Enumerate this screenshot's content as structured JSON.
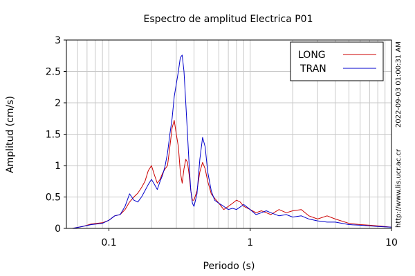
{
  "chart_data": {
    "type": "line",
    "title": "Espectro de amplitud Electrica P01",
    "xlabel": "Periodo (s)",
    "ylabel": "Amplitud (cm/s)",
    "xscale": "log",
    "xlim": [
      0.05,
      10
    ],
    "ylim": [
      0,
      3
    ],
    "x_tick_labels": [
      "0.1",
      "1",
      "10"
    ],
    "x_tick_values": [
      0.1,
      1,
      10
    ],
    "y_tick_labels": [
      "0",
      "0.5",
      "1",
      "1.5",
      "2",
      "2.5",
      "3"
    ],
    "y_tick_values": [
      0,
      0.5,
      1,
      1.5,
      2,
      2.5,
      3
    ],
    "grid": true,
    "legend_position": "top-right",
    "series": [
      {
        "name": "LONG",
        "color": "#cc0000",
        "points": [
          [
            0.055,
            0.0
          ],
          [
            0.065,
            0.03
          ],
          [
            0.075,
            0.07
          ],
          [
            0.09,
            0.09
          ],
          [
            0.1,
            0.13
          ],
          [
            0.11,
            0.2
          ],
          [
            0.12,
            0.22
          ],
          [
            0.13,
            0.3
          ],
          [
            0.14,
            0.42
          ],
          [
            0.15,
            0.5
          ],
          [
            0.16,
            0.56
          ],
          [
            0.17,
            0.65
          ],
          [
            0.18,
            0.75
          ],
          [
            0.19,
            0.92
          ],
          [
            0.2,
            1.0
          ],
          [
            0.21,
            0.85
          ],
          [
            0.22,
            0.72
          ],
          [
            0.23,
            0.78
          ],
          [
            0.24,
            0.88
          ],
          [
            0.25,
            0.95
          ],
          [
            0.26,
            1.0
          ],
          [
            0.27,
            1.3
          ],
          [
            0.28,
            1.6
          ],
          [
            0.29,
            1.72
          ],
          [
            0.3,
            1.5
          ],
          [
            0.31,
            1.3
          ],
          [
            0.32,
            0.9
          ],
          [
            0.33,
            0.72
          ],
          [
            0.34,
            0.95
          ],
          [
            0.35,
            1.1
          ],
          [
            0.36,
            1.05
          ],
          [
            0.37,
            0.85
          ],
          [
            0.38,
            0.6
          ],
          [
            0.39,
            0.45
          ],
          [
            0.4,
            0.45
          ],
          [
            0.42,
            0.6
          ],
          [
            0.44,
            0.9
          ],
          [
            0.46,
            1.05
          ],
          [
            0.48,
            0.95
          ],
          [
            0.5,
            0.75
          ],
          [
            0.53,
            0.55
          ],
          [
            0.56,
            0.48
          ],
          [
            0.6,
            0.4
          ],
          [
            0.65,
            0.3
          ],
          [
            0.7,
            0.35
          ],
          [
            0.75,
            0.4
          ],
          [
            0.8,
            0.45
          ],
          [
            0.85,
            0.42
          ],
          [
            0.9,
            0.35
          ],
          [
            1.0,
            0.3
          ],
          [
            1.1,
            0.25
          ],
          [
            1.2,
            0.28
          ],
          [
            1.3,
            0.25
          ],
          [
            1.4,
            0.22
          ],
          [
            1.6,
            0.3
          ],
          [
            1.8,
            0.25
          ],
          [
            2.0,
            0.28
          ],
          [
            2.3,
            0.3
          ],
          [
            2.6,
            0.2
          ],
          [
            3.0,
            0.15
          ],
          [
            3.5,
            0.2
          ],
          [
            4.0,
            0.15
          ],
          [
            5.0,
            0.08
          ],
          [
            6.0,
            0.06
          ],
          [
            7.0,
            0.05
          ],
          [
            8.0,
            0.04
          ],
          [
            10.0,
            0.02
          ]
        ]
      },
      {
        "name": "TRAN",
        "color": "#0000cc",
        "points": [
          [
            0.055,
            0.0
          ],
          [
            0.065,
            0.03
          ],
          [
            0.075,
            0.06
          ],
          [
            0.09,
            0.08
          ],
          [
            0.1,
            0.13
          ],
          [
            0.11,
            0.2
          ],
          [
            0.12,
            0.22
          ],
          [
            0.13,
            0.35
          ],
          [
            0.14,
            0.55
          ],
          [
            0.15,
            0.45
          ],
          [
            0.16,
            0.42
          ],
          [
            0.17,
            0.5
          ],
          [
            0.18,
            0.6
          ],
          [
            0.19,
            0.7
          ],
          [
            0.2,
            0.78
          ],
          [
            0.21,
            0.7
          ],
          [
            0.22,
            0.62
          ],
          [
            0.23,
            0.75
          ],
          [
            0.24,
            0.85
          ],
          [
            0.25,
            1.0
          ],
          [
            0.26,
            1.2
          ],
          [
            0.27,
            1.5
          ],
          [
            0.28,
            1.75
          ],
          [
            0.29,
            2.1
          ],
          [
            0.3,
            2.3
          ],
          [
            0.31,
            2.5
          ],
          [
            0.32,
            2.72
          ],
          [
            0.33,
            2.76
          ],
          [
            0.34,
            2.5
          ],
          [
            0.35,
            2.0
          ],
          [
            0.36,
            1.5
          ],
          [
            0.37,
            1.0
          ],
          [
            0.38,
            0.6
          ],
          [
            0.39,
            0.4
          ],
          [
            0.4,
            0.35
          ],
          [
            0.42,
            0.55
          ],
          [
            0.44,
            1.1
          ],
          [
            0.46,
            1.45
          ],
          [
            0.48,
            1.3
          ],
          [
            0.5,
            0.9
          ],
          [
            0.53,
            0.6
          ],
          [
            0.56,
            0.45
          ],
          [
            0.6,
            0.4
          ],
          [
            0.65,
            0.35
          ],
          [
            0.7,
            0.3
          ],
          [
            0.75,
            0.32
          ],
          [
            0.8,
            0.3
          ],
          [
            0.9,
            0.38
          ],
          [
            1.0,
            0.3
          ],
          [
            1.1,
            0.22
          ],
          [
            1.2,
            0.25
          ],
          [
            1.3,
            0.28
          ],
          [
            1.4,
            0.25
          ],
          [
            1.6,
            0.2
          ],
          [
            1.8,
            0.22
          ],
          [
            2.0,
            0.18
          ],
          [
            2.3,
            0.2
          ],
          [
            2.6,
            0.15
          ],
          [
            3.0,
            0.12
          ],
          [
            3.5,
            0.1
          ],
          [
            4.0,
            0.1
          ],
          [
            5.0,
            0.06
          ],
          [
            6.0,
            0.05
          ],
          [
            7.0,
            0.04
          ],
          [
            8.0,
            0.03
          ],
          [
            10.0,
            0.02
          ]
        ]
      }
    ],
    "side_text": [
      "2022-09-03 01:00:31 AM",
      "http://www.lis.ucr.ac.cr"
    ]
  }
}
